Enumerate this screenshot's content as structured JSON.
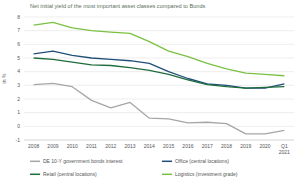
{
  "chart_data": {
    "type": "line",
    "title": "Net initial yield of the most important asset classes compared to Bunds",
    "y_label": "in %",
    "categories": [
      "2008",
      "2009",
      "2010",
      "2011",
      "2012",
      "2013",
      "2014",
      "2015",
      "2016",
      "2017",
      "2018",
      "2019",
      "2020",
      "Q1 2021"
    ],
    "series": [
      {
        "name": "DE 10-Y government bonds interest",
        "color": "#a6a6a6",
        "values": [
          3.05,
          3.15,
          2.9,
          1.9,
          1.35,
          1.75,
          0.6,
          0.55,
          0.25,
          0.3,
          0.2,
          -0.55,
          -0.55,
          -0.3
        ]
      },
      {
        "name": "Office (central locations)",
        "color": "#1f4e79",
        "values": [
          5.3,
          5.5,
          5.2,
          5.0,
          4.9,
          4.8,
          4.6,
          4.0,
          3.5,
          3.1,
          3.0,
          2.8,
          2.8,
          3.1
        ]
      },
      {
        "name": "Retail (central locations)",
        "color": "#1e6b3c",
        "values": [
          5.0,
          4.9,
          4.7,
          4.5,
          4.45,
          4.3,
          4.1,
          3.8,
          3.4,
          3.05,
          2.9,
          2.8,
          2.85,
          2.9
        ]
      },
      {
        "name": "Logistics (investment grade)",
        "color": "#7ac142",
        "values": [
          7.4,
          7.6,
          7.2,
          7.0,
          6.9,
          6.8,
          6.2,
          5.5,
          5.1,
          4.6,
          4.2,
          3.9,
          3.8,
          3.7
        ]
      }
    ],
    "ylim": [
      -1,
      8
    ],
    "yticks": [
      -1,
      0,
      1,
      2,
      3,
      4,
      5,
      6,
      7,
      8
    ],
    "grid": true,
    "legend": "bottom"
  }
}
